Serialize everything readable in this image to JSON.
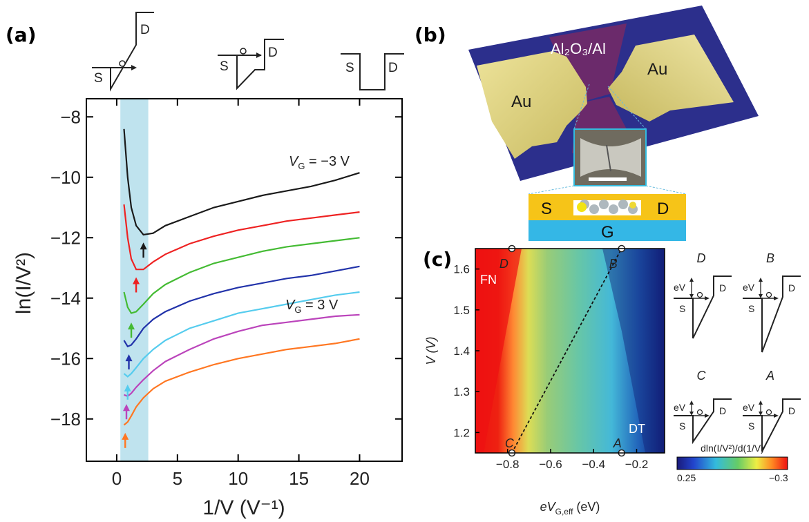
{
  "panel_labels": {
    "a": "(a)",
    "b": "(b)",
    "c": "(c)"
  },
  "panel_a": {
    "band_labels": {
      "S": "S",
      "D": "D"
    },
    "label_top": "V",
    "label_top_sub": "G",
    "label_top_val": " = −3 V",
    "label_bottom": "V",
    "label_bottom_sub": "G",
    "label_bottom_val": " = 3 V",
    "ylabel": "ln(I/V²)",
    "xlabel": "1/V (V⁻¹)"
  },
  "panel_b": {
    "top_label": "Al₂O₃/Al",
    "au_left": "Au",
    "au_right": "Au",
    "s": "S",
    "d": "D",
    "g": "G"
  },
  "panel_c": {
    "ylabel": "V (V)",
    "xlabel": "eV",
    "xlabel_sub": "G,eff",
    "xlabel_unit": " (eV)",
    "fn": "FN",
    "dt": "DT",
    "points": {
      "D": "D",
      "B": "B",
      "C": "C",
      "A": "A"
    },
    "colorbar_title": "dln(I/V²)/d(1/V)",
    "colorbar_min": "0.25",
    "colorbar_max": "−0.3",
    "insets": [
      {
        "letter": "D",
        "ev": "eV",
        "s": "S",
        "d": "D"
      },
      {
        "letter": "B",
        "ev": "eV",
        "s": "S",
        "d": "D"
      },
      {
        "letter": "C",
        "ev": "eV",
        "s": "S",
        "d": "D"
      },
      {
        "letter": "A",
        "ev": "eV",
        "s": "S",
        "d": "D"
      }
    ]
  },
  "chart_data": [
    {
      "type": "line",
      "xlabel": "1/V (V⁻¹)",
      "ylabel": "ln(I/V²)",
      "xlim": [
        -2.5,
        23.5
      ],
      "ylim": [
        -19.4,
        -7.4
      ],
      "xticks": [
        0,
        5,
        10,
        15,
        20
      ],
      "xtick_labels": [
        "0",
        "5",
        "10",
        "15",
        "20"
      ],
      "yticks": [
        -18,
        -16,
        -14,
        -12,
        -10,
        -8
      ],
      "ytick_labels": [
        "−18",
        "−16",
        "−14",
        "−12",
        "−10",
        "−8"
      ],
      "series": [
        {
          "color": "#1a1a1a",
          "points": [
            [
              0.6,
              -8.4
            ],
            [
              0.9,
              -10.0
            ],
            [
              1.2,
              -11.0
            ],
            [
              1.6,
              -11.6
            ],
            [
              2.2,
              -11.9
            ],
            [
              3,
              -11.85
            ],
            [
              4,
              -11.6
            ],
            [
              6,
              -11.3
            ],
            [
              8,
              -11.0
            ],
            [
              10,
              -10.8
            ],
            [
              12,
              -10.6
            ],
            [
              14,
              -10.45
            ],
            [
              16,
              -10.3
            ],
            [
              18,
              -10.1
            ],
            [
              20,
              -9.85
            ]
          ]
        },
        {
          "color": "#ee2222",
          "points": [
            [
              0.6,
              -10.9
            ],
            [
              0.9,
              -12.0
            ],
            [
              1.2,
              -12.7
            ],
            [
              1.6,
              -13.05
            ],
            [
              2.2,
              -13.05
            ],
            [
              3,
              -12.8
            ],
            [
              4,
              -12.55
            ],
            [
              6,
              -12.2
            ],
            [
              8,
              -11.95
            ],
            [
              10,
              -11.75
            ],
            [
              12,
              -11.6
            ],
            [
              14,
              -11.45
            ],
            [
              16,
              -11.35
            ],
            [
              18,
              -11.25
            ],
            [
              20,
              -11.15
            ]
          ]
        },
        {
          "color": "#44bb33",
          "points": [
            [
              0.6,
              -13.8
            ],
            [
              0.9,
              -14.3
            ],
            [
              1.2,
              -14.5
            ],
            [
              1.6,
              -14.45
            ],
            [
              2.2,
              -14.2
            ],
            [
              3,
              -13.85
            ],
            [
              4,
              -13.55
            ],
            [
              6,
              -13.15
            ],
            [
              8,
              -12.85
            ],
            [
              10,
              -12.65
            ],
            [
              12,
              -12.45
            ],
            [
              14,
              -12.3
            ],
            [
              16,
              -12.2
            ],
            [
              18,
              -12.1
            ],
            [
              20,
              -12.0
            ]
          ]
        },
        {
          "color": "#2233aa",
          "points": [
            [
              0.6,
              -15.4
            ],
            [
              0.9,
              -15.6
            ],
            [
              1.2,
              -15.55
            ],
            [
              1.6,
              -15.35
            ],
            [
              2.2,
              -15.0
            ],
            [
              3,
              -14.7
            ],
            [
              4,
              -14.45
            ],
            [
              6,
              -14.1
            ],
            [
              8,
              -13.85
            ],
            [
              10,
              -13.65
            ],
            [
              12,
              -13.5
            ],
            [
              14,
              -13.35
            ],
            [
              16,
              -13.25
            ],
            [
              18,
              -13.1
            ],
            [
              20,
              -12.95
            ]
          ]
        },
        {
          "color": "#55ccee",
          "points": [
            [
              0.6,
              -16.5
            ],
            [
              0.9,
              -16.6
            ],
            [
              1.2,
              -16.5
            ],
            [
              1.6,
              -16.3
            ],
            [
              2.2,
              -16.0
            ],
            [
              3,
              -15.7
            ],
            [
              4,
              -15.4
            ],
            [
              6,
              -15.0
            ],
            [
              8,
              -14.75
            ],
            [
              10,
              -14.5
            ],
            [
              12,
              -14.35
            ],
            [
              14,
              -14.2
            ],
            [
              16,
              -14.05
            ],
            [
              18,
              -13.9
            ],
            [
              20,
              -13.8
            ]
          ]
        },
        {
          "color": "#bb44bb",
          "points": [
            [
              0.6,
              -17.2
            ],
            [
              0.9,
              -17.25
            ],
            [
              1.2,
              -17.15
            ],
            [
              1.6,
              -16.95
            ],
            [
              2.2,
              -16.7
            ],
            [
              3,
              -16.4
            ],
            [
              4,
              -16.1
            ],
            [
              6,
              -15.7
            ],
            [
              8,
              -15.35
            ],
            [
              10,
              -15.1
            ],
            [
              12,
              -14.9
            ],
            [
              14,
              -14.8
            ],
            [
              16,
              -14.7
            ],
            [
              18,
              -14.6
            ],
            [
              20,
              -14.55
            ]
          ]
        },
        {
          "color": "#ff7722",
          "points": [
            [
              0.6,
              -18.2
            ],
            [
              0.9,
              -18.1
            ],
            [
              1.2,
              -17.9
            ],
            [
              1.6,
              -17.6
            ],
            [
              2.2,
              -17.3
            ],
            [
              3,
              -17.0
            ],
            [
              4,
              -16.75
            ],
            [
              6,
              -16.45
            ],
            [
              8,
              -16.2
            ],
            [
              10,
              -16.0
            ],
            [
              12,
              -15.85
            ],
            [
              14,
              -15.7
            ],
            [
              16,
              -15.6
            ],
            [
              18,
              -15.5
            ],
            [
              20,
              -15.35
            ]
          ]
        }
      ],
      "arrows": [
        {
          "color": "#1a1a1a",
          "x": 2.2,
          "y": -12.25
        },
        {
          "color": "#ee2222",
          "x": 1.6,
          "y": -13.4
        },
        {
          "color": "#44bb33",
          "x": 1.2,
          "y": -14.9
        },
        {
          "color": "#2233aa",
          "x": 1.0,
          "y": -15.95
        },
        {
          "color": "#55ccee",
          "x": 0.9,
          "y": -16.95
        },
        {
          "color": "#bb44bb",
          "x": 0.8,
          "y": -17.6
        },
        {
          "color": "#ff7722",
          "x": 0.7,
          "y": -18.55
        }
      ],
      "shaded_x": [
        0.3,
        2.6
      ]
    },
    {
      "type": "heatmap",
      "xlabel": "eV G,eff (eV)",
      "ylabel": "V (V)",
      "xlim": [
        -0.95,
        -0.07
      ],
      "ylim": [
        1.15,
        1.65
      ],
      "xticks": [
        -0.8,
        -0.6,
        -0.4,
        -0.2
      ],
      "xtick_labels": [
        "−0.8",
        "−0.6",
        "−0.4",
        "−0.2"
      ],
      "yticks": [
        1.2,
        1.3,
        1.4,
        1.5,
        1.6
      ],
      "ytick_labels": [
        "1.2",
        "1.3",
        "1.4",
        "1.5",
        "1.6"
      ],
      "colorbar_range": [
        0.25,
        -0.3
      ],
      "points": [
        {
          "label": "D",
          "x": -0.78,
          "y": 1.65
        },
        {
          "label": "B",
          "x": -0.27,
          "y": 1.65
        },
        {
          "label": "C",
          "x": -0.78,
          "y": 1.15
        },
        {
          "label": "A",
          "x": -0.27,
          "y": 1.15
        }
      ]
    }
  ]
}
